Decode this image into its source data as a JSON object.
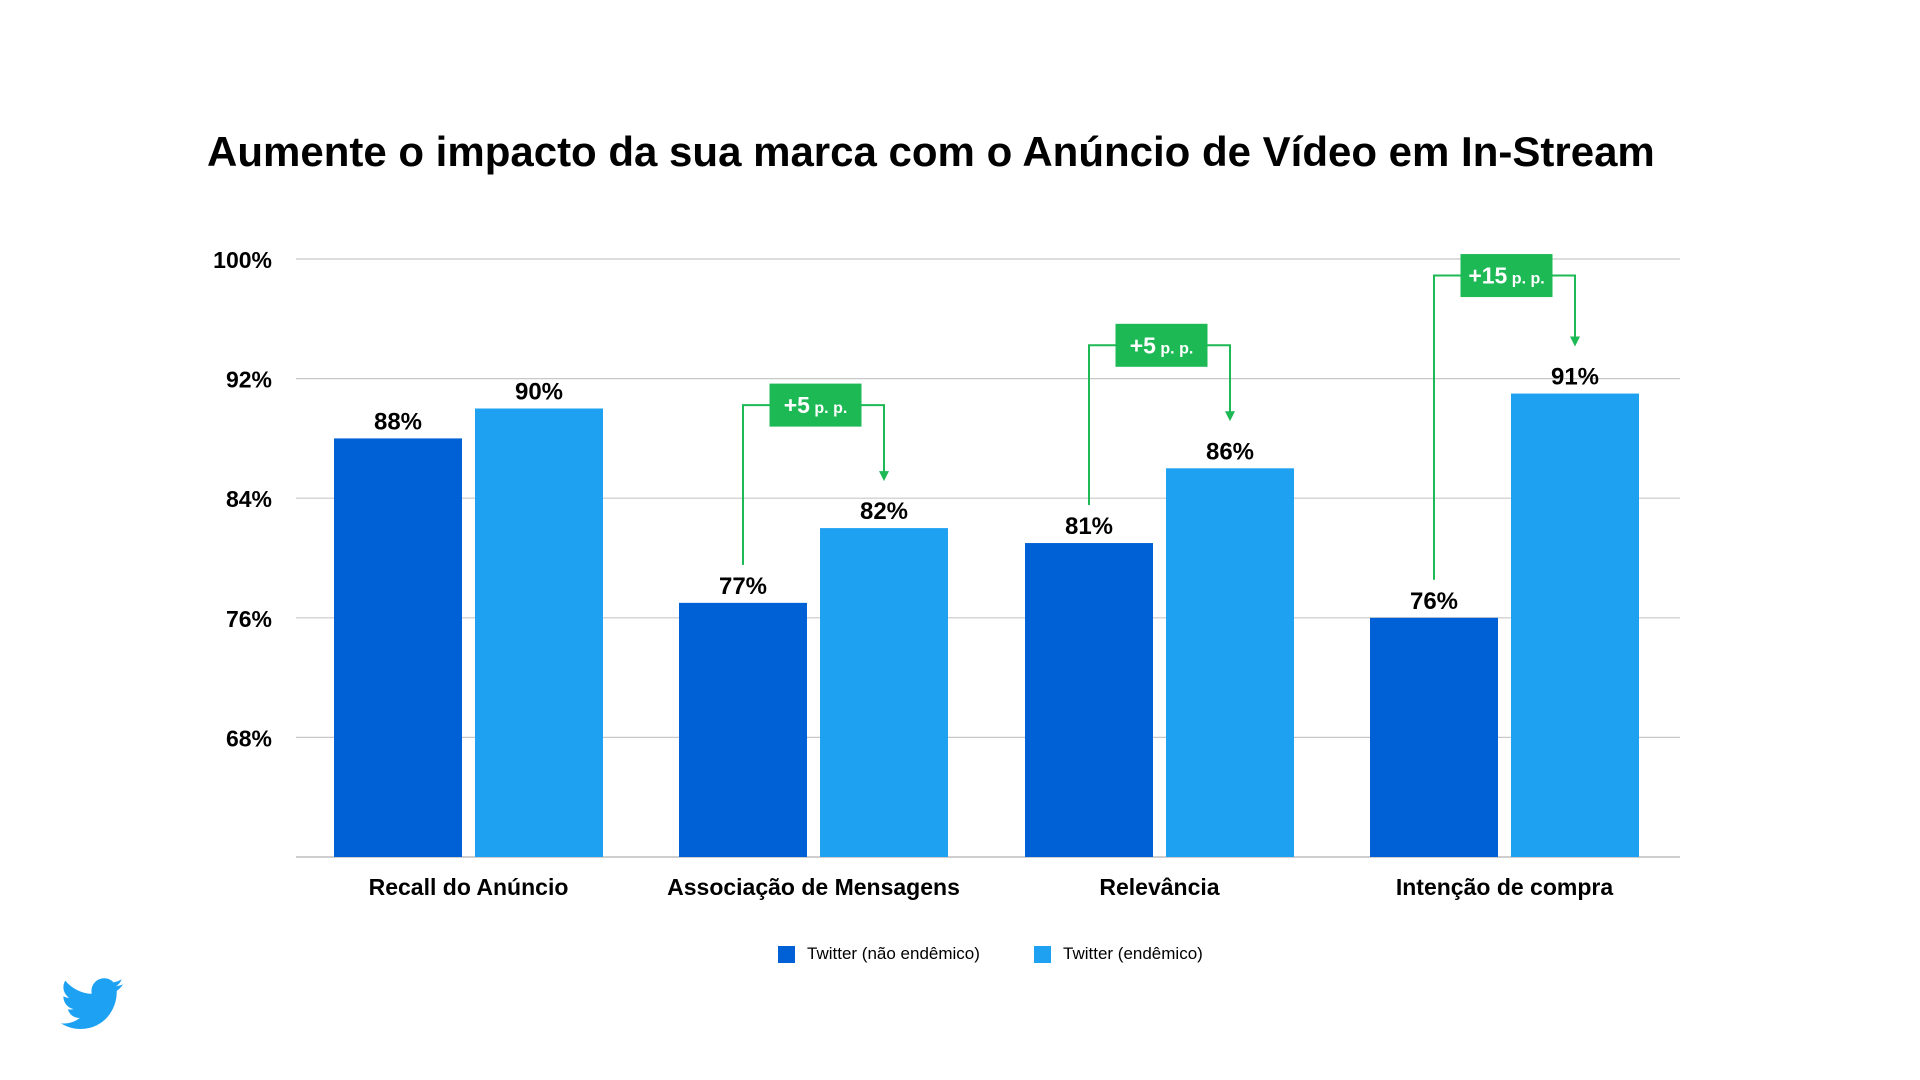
{
  "chart_data": {
    "type": "bar",
    "title": "Aumente o impacto da sua marca com o Anúncio de Vídeo em In-Stream",
    "categories": [
      "Recall do Anúncio",
      "Associação de Mensagens",
      "Relevância",
      "Intenção de compra"
    ],
    "series": [
      {
        "name": "Twitter (não endêmico)",
        "values": [
          88,
          77,
          81,
          76
        ],
        "labels": [
          "88%",
          "77%",
          "81%",
          "76%"
        ],
        "color": "#0060D6"
      },
      {
        "name": "Twitter (endêmico)",
        "values": [
          90,
          82,
          86,
          91
        ],
        "labels": [
          "90%",
          "82%",
          "86%",
          "91%"
        ],
        "color": "#1FA1F1"
      }
    ],
    "y_ticks": [
      68,
      76,
      84,
      92,
      100
    ],
    "y_tick_labels": [
      "68%",
      "76%",
      "84%",
      "92%",
      "100%"
    ],
    "ylim": [
      60,
      100
    ],
    "grid": true,
    "legend_position": "bottom-center",
    "annotations": [
      {
        "category_index": 1,
        "value": "+5",
        "unit": "p. p."
      },
      {
        "category_index": 2,
        "value": "+5",
        "unit": "p. p."
      },
      {
        "category_index": 3,
        "value": "+15",
        "unit": "p. p."
      }
    ],
    "annotation_color": "#1DB954",
    "grid_color": "#c8c8c8"
  },
  "logo": {
    "name": "twitter-bird-icon",
    "color": "#1DA1F2"
  }
}
